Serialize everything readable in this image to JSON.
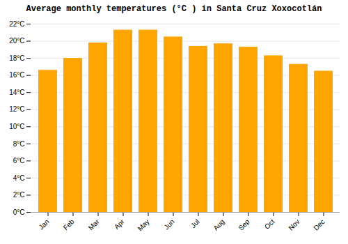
{
  "chart_data": {
    "type": "bar",
    "title": "Average monthly temperatures (°C ) in Santa Cruz Xoxocotlán",
    "categories": [
      "Jan",
      "Feb",
      "Mar",
      "Apr",
      "May",
      "Jun",
      "Jul",
      "Aug",
      "Sep",
      "Oct",
      "Nov",
      "Dec"
    ],
    "values": [
      16.6,
      18.0,
      19.8,
      21.3,
      21.3,
      20.5,
      19.4,
      19.7,
      19.3,
      18.3,
      17.3,
      16.5
    ],
    "color": "#FFA500",
    "ylim": [
      0,
      22
    ],
    "yticks": [
      {
        "value": 0,
        "label": "0°C"
      },
      {
        "value": 2,
        "label": "2°C"
      },
      {
        "value": 4,
        "label": "4°C"
      },
      {
        "value": 6,
        "label": "6°C"
      },
      {
        "value": 8,
        "label": "8°C"
      },
      {
        "value": 10,
        "label": "10°C"
      },
      {
        "value": 12,
        "label": "12°C"
      },
      {
        "value": 14,
        "label": "14°C"
      },
      {
        "value": 16,
        "label": "16°C"
      },
      {
        "value": 18,
        "label": "18°C"
      },
      {
        "value": 20,
        "label": "20°C"
      },
      {
        "value": 22,
        "label": "22°C"
      }
    ],
    "grid": true
  }
}
